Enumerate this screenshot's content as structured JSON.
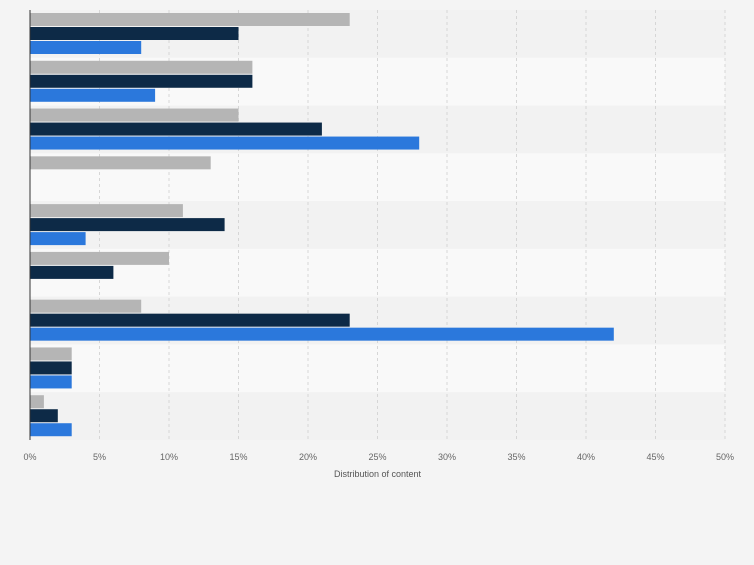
{
  "chart_data": {
    "type": "bar",
    "orientation": "horizontal",
    "title": "",
    "xlabel": "Distribution of content",
    "ylabel": "",
    "xlim": [
      0,
      50
    ],
    "x_tick_values": [
      0,
      5,
      10,
      15,
      20,
      25,
      30,
      35,
      40,
      45,
      50
    ],
    "x_tick_labels": [
      "0%",
      "5%",
      "10%",
      "15%",
      "20%",
      "25%",
      "30%",
      "35%",
      "40%",
      "45%",
      "50%"
    ],
    "grid": true,
    "legend": "none",
    "category_count": 9,
    "series": [
      {
        "name": "series-1",
        "color": "#b5b5b5",
        "values": [
          23,
          16,
          15,
          13,
          11,
          10,
          8,
          3,
          1
        ]
      },
      {
        "name": "series-2",
        "color": "#0d2a47",
        "values": [
          15,
          16,
          21,
          0,
          14,
          6,
          23,
          3,
          2
        ]
      },
      {
        "name": "series-3",
        "color": "#2b78dc",
        "values": [
          8,
          9,
          28,
          0,
          4,
          0,
          42,
          3,
          3
        ]
      }
    ]
  }
}
